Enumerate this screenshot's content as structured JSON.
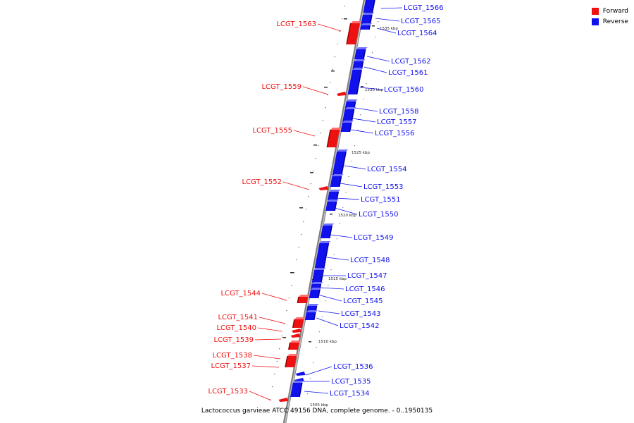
{
  "legend": {
    "forward_label": "Forward",
    "reverse_label": "Reverse",
    "forward_color": "#ee1111",
    "reverse_color": "#1111ee"
  },
  "caption": "Lactococcus garvieae ATCC 49156 DNA, complete genome. - 0..1950135",
  "ticks": [
    "1535 kbp",
    "1530 kbp",
    "1525 kbp",
    "1520 kbp",
    "1515 kbp",
    "1510 kbp",
    "1505 kbp"
  ],
  "forward_genes": [
    "LCGT_1563",
    "LCGT_1559",
    "LCGT_1555",
    "LCGT_1552",
    "LCGT_1544",
    "LCGT_1541",
    "LCGT_1540",
    "LCGT_1539",
    "LCGT_1538",
    "LCGT_1537",
    "LCGT_1533"
  ],
  "reverse_genes": [
    "LCGT_1566",
    "LCGT_1565",
    "LCGT_1564",
    "LCGT_1562",
    "LCGT_1561",
    "LCGT_1560",
    "LCGT_1558",
    "LCGT_1557",
    "LCGT_1556",
    "LCGT_1554",
    "LCGT_1553",
    "LCGT_1551",
    "LCGT_1550",
    "LCGT_1549",
    "LCGT_1548",
    "LCGT_1547",
    "LCGT_1546",
    "LCGT_1545",
    "LCGT_1543",
    "LCGT_1542",
    "LCGT_1536",
    "LCGT_1535",
    "LCGT_1534"
  ]
}
